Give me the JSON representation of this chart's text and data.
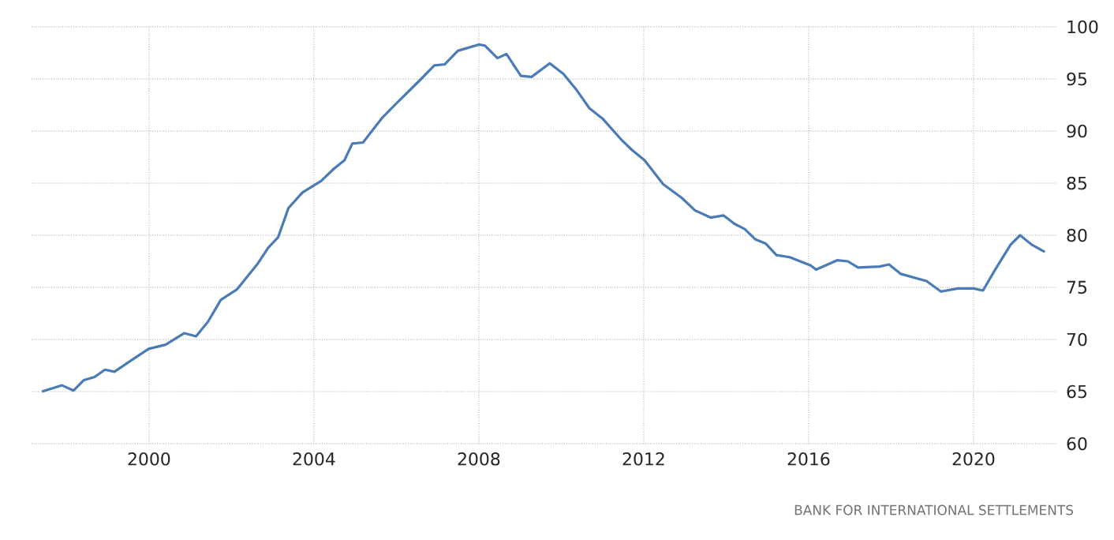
{
  "chart_data": {
    "type": "line",
    "xlim": [
      1997.15,
      2022.03
    ],
    "ylim": [
      60,
      100
    ],
    "xticks": [
      2000,
      2004,
      2008,
      2012,
      2016,
      2020
    ],
    "yticks": [
      60,
      65,
      70,
      75,
      80,
      85,
      90,
      95,
      100
    ],
    "grid": true,
    "marker": "none",
    "line_style": "solid",
    "annotations": [
      "BANK FOR INTERNATIONAL SETTLEMENTS"
    ],
    "series": [
      {
        "color": "#4a7bb7",
        "x": [
          1997.4,
          1997.89,
          1998.17,
          1998.42,
          1998.68,
          1998.93,
          1999.16,
          1999.57,
          1999.99,
          2000.4,
          2000.85,
          2001.14,
          2001.43,
          2001.74,
          2002.13,
          2002.64,
          2002.89,
          2003.13,
          2003.38,
          2003.72,
          2004.17,
          2004.49,
          2004.74,
          2004.93,
          2005.19,
          2005.64,
          2005.96,
          2006.6,
          2006.92,
          2007.17,
          2007.49,
          2008.0,
          2008.15,
          2008.45,
          2008.67,
          2009.02,
          2009.28,
          2009.72,
          2010.05,
          2010.36,
          2010.68,
          2011.0,
          2011.45,
          2011.71,
          2012.02,
          2012.47,
          2012.92,
          2013.24,
          2013.62,
          2013.94,
          2014.2,
          2014.45,
          2014.71,
          2014.96,
          2015.22,
          2015.54,
          2016.05,
          2016.18,
          2016.69,
          2016.95,
          2017.2,
          2017.72,
          2017.95,
          2018.23,
          2018.86,
          2019.21,
          2019.62,
          2020.0,
          2020.23,
          2020.51,
          2020.9,
          2021.13,
          2021.41,
          2021.73
        ],
        "values": [
          65.0,
          65.6,
          65.1,
          66.1,
          66.4,
          67.1,
          66.9,
          68.0,
          69.1,
          69.5,
          70.6,
          70.3,
          71.7,
          73.8,
          74.8,
          77.3,
          78.8,
          79.8,
          82.6,
          84.1,
          85.2,
          86.4,
          87.2,
          88.8,
          88.9,
          91.2,
          92.5,
          95.0,
          96.3,
          96.4,
          97.7,
          98.3,
          98.2,
          97.0,
          97.4,
          95.3,
          95.2,
          96.5,
          95.5,
          94.0,
          92.2,
          91.2,
          89.2,
          88.2,
          87.2,
          84.9,
          83.6,
          82.4,
          81.7,
          81.9,
          81.1,
          80.6,
          79.6,
          79.2,
          78.1,
          77.9,
          77.1,
          76.7,
          77.6,
          77.5,
          76.9,
          77.0,
          77.2,
          76.3,
          75.6,
          74.6,
          74.9,
          74.9,
          74.7,
          76.6,
          79.1,
          80.0,
          79.1,
          78.4
        ]
      }
    ]
  }
}
